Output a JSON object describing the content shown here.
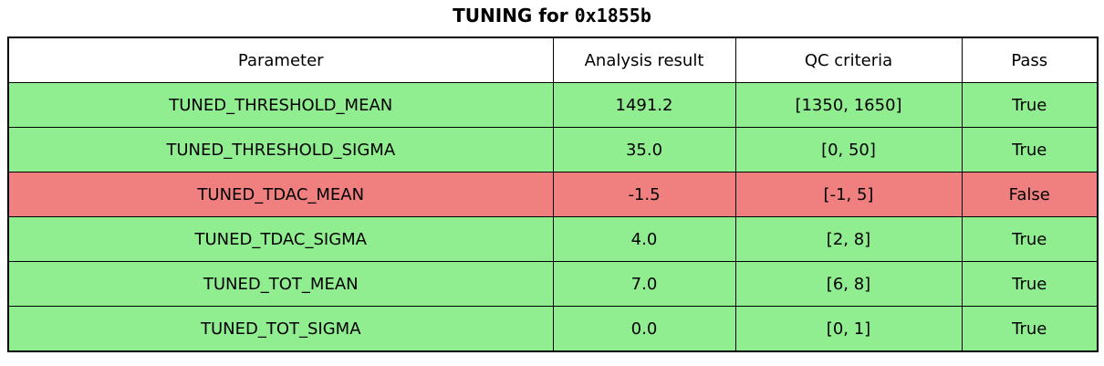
{
  "title": {
    "prefix": "TUNING for ",
    "chip_id": "0x1855b"
  },
  "colors": {
    "pass_bg": "#90EE90",
    "fail_bg": "#F08080",
    "header_bg": "#FFFFFF",
    "border": "#000000",
    "text": "#000000"
  },
  "chart_data": {
    "type": "table",
    "title": "TUNING for 0x1855b",
    "columns": [
      "Parameter",
      "Analysis result",
      "QC criteria",
      "Pass"
    ],
    "rows": [
      {
        "parameter": "TUNED_THRESHOLD_MEAN",
        "analysis_result": "1491.2",
        "qc_criteria": "[1350, 1650]",
        "pass": "True",
        "status": "pass"
      },
      {
        "parameter": "TUNED_THRESHOLD_SIGMA",
        "analysis_result": "35.0",
        "qc_criteria": "[0, 50]",
        "pass": "True",
        "status": "pass"
      },
      {
        "parameter": "TUNED_TDAC_MEAN",
        "analysis_result": "-1.5",
        "qc_criteria": "[-1, 5]",
        "pass": "False",
        "status": "fail"
      },
      {
        "parameter": "TUNED_TDAC_SIGMA",
        "analysis_result": "4.0",
        "qc_criteria": "[2, 8]",
        "pass": "True",
        "status": "pass"
      },
      {
        "parameter": "TUNED_TOT_MEAN",
        "analysis_result": "7.0",
        "qc_criteria": "[6, 8]",
        "pass": "True",
        "status": "pass"
      },
      {
        "parameter": "TUNED_TOT_SIGMA",
        "analysis_result": "0.0",
        "qc_criteria": "[0, 1]",
        "pass": "True",
        "status": "pass"
      }
    ]
  }
}
